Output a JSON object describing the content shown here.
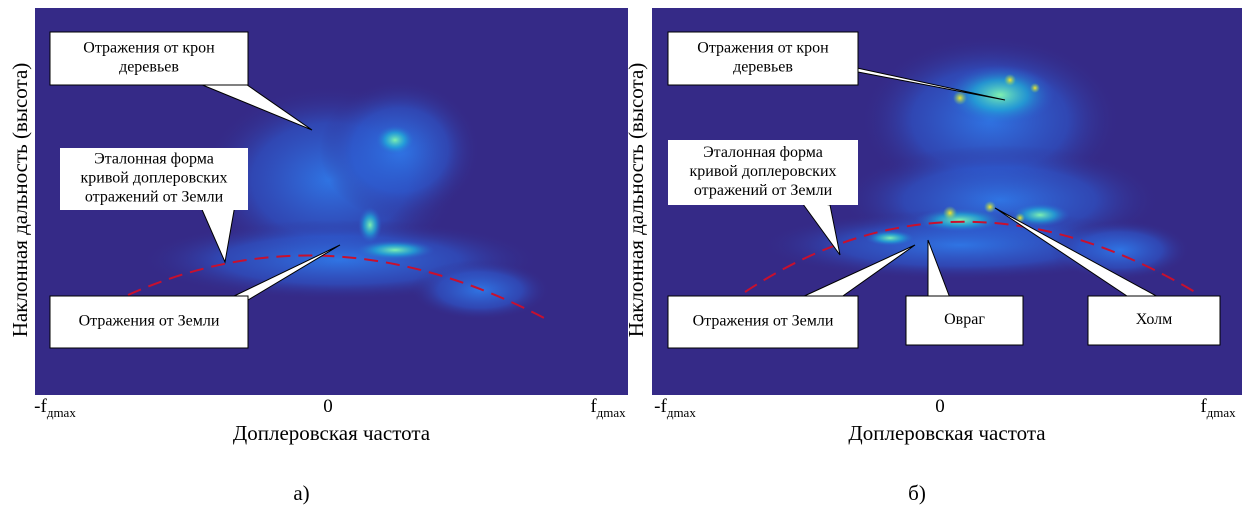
{
  "panels": [
    {
      "caption": "а)",
      "y_label": "Наклонная дальность (высота)",
      "x_label": "Доплеровская частота",
      "x_ticks": [
        {
          "main": "-f",
          "sub": "дmax"
        },
        {
          "main": "0"
        },
        {
          "main": "f",
          "sub": "дmax"
        }
      ],
      "callouts": [
        {
          "lines": [
            "Отражения от крон",
            "деревьев"
          ]
        },
        {
          "lines": [
            "Эталонная форма",
            "кривой доплеровских",
            "отражений от Земли"
          ]
        },
        {
          "lines": [
            "Отражения от Земли"
          ]
        }
      ]
    },
    {
      "caption": "б)",
      "y_label": "Наклонная дальность (высота)",
      "x_label": "Доплеровская частота",
      "x_ticks": [
        {
          "main": "-f",
          "sub": "дmax"
        },
        {
          "main": "0"
        },
        {
          "main": "f",
          "sub": "дmax"
        }
      ],
      "callouts": [
        {
          "lines": [
            "Отражения от крон",
            "деревьев"
          ]
        },
        {
          "lines": [
            "Эталонная форма",
            "кривой доплеровских",
            "отражений от Земли"
          ]
        },
        {
          "lines": [
            "Отражения от Земли"
          ]
        },
        {
          "lines": [
            "Овраг"
          ]
        },
        {
          "lines": [
            "Холм"
          ]
        }
      ]
    }
  ]
}
